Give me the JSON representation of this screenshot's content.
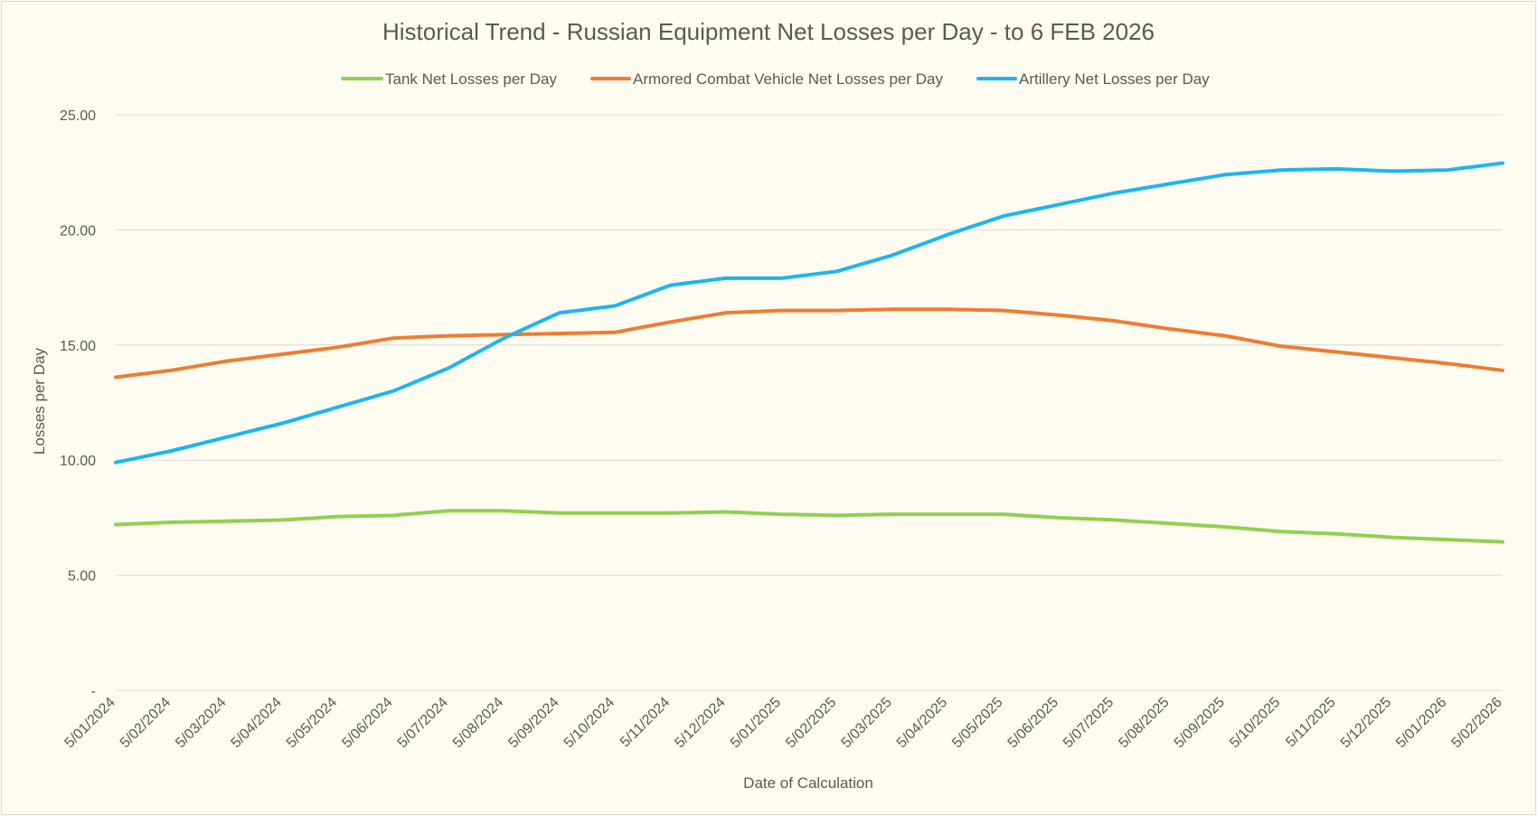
{
  "chart_data": {
    "type": "line",
    "title": "Historical Trend - Russian Equipment Net Losses per Day - to 6 FEB 2026",
    "xlabel": "Date of Calculation",
    "ylabel": "Losses per Day",
    "ylim": [
      0,
      25
    ],
    "y_ticks": [
      {
        "value": 0,
        "label": "-"
      },
      {
        "value": 5,
        "label": "5.00"
      },
      {
        "value": 10,
        "label": "10.00"
      },
      {
        "value": 15,
        "label": "15.00"
      },
      {
        "value": 20,
        "label": "20.00"
      },
      {
        "value": 25,
        "label": "25.00"
      }
    ],
    "grid": true,
    "legend_position": "top",
    "categories": [
      "5/01/2024",
      "5/02/2024",
      "5/03/2024",
      "5/04/2024",
      "5/05/2024",
      "5/06/2024",
      "5/07/2024",
      "5/08/2024",
      "5/09/2024",
      "5/10/2024",
      "5/11/2024",
      "5/12/2024",
      "5/01/2025",
      "5/02/2025",
      "5/03/2025",
      "5/04/2025",
      "5/05/2025",
      "5/06/2025",
      "5/07/2025",
      "5/08/2025",
      "5/09/2025",
      "5/10/2025",
      "5/11/2025",
      "5/12/2025",
      "5/01/2026",
      "5/02/2026"
    ],
    "series": [
      {
        "name": "Tank Net Losses per Day",
        "color": "#8fd14f",
        "values": [
          7.2,
          7.3,
          7.35,
          7.4,
          7.55,
          7.6,
          7.8,
          7.8,
          7.7,
          7.7,
          7.7,
          7.75,
          7.65,
          7.6,
          7.65,
          7.65,
          7.65,
          7.5,
          7.4,
          7.25,
          7.1,
          6.9,
          6.8,
          6.65,
          6.55,
          6.45
        ]
      },
      {
        "name": "Armored Combat Vehicle Net Losses per Day",
        "color": "#ed7d31",
        "values": [
          13.6,
          13.9,
          14.3,
          14.6,
          14.9,
          15.3,
          15.4,
          15.45,
          15.5,
          15.55,
          16.0,
          16.4,
          16.5,
          16.5,
          16.55,
          16.55,
          16.5,
          16.3,
          16.05,
          15.7,
          15.4,
          14.95,
          14.7,
          14.45,
          14.2,
          13.9
        ]
      },
      {
        "name": "Artillery Net Losses per Day",
        "color": "#1cb5f0",
        "values": [
          9.9,
          10.4,
          11.0,
          11.6,
          12.3,
          13.0,
          14.0,
          15.3,
          16.4,
          16.7,
          17.6,
          17.9,
          17.9,
          18.2,
          18.9,
          19.8,
          20.6,
          21.1,
          21.6,
          22.0,
          22.4,
          22.6,
          22.65,
          22.55,
          22.6,
          22.9
        ]
      }
    ]
  }
}
